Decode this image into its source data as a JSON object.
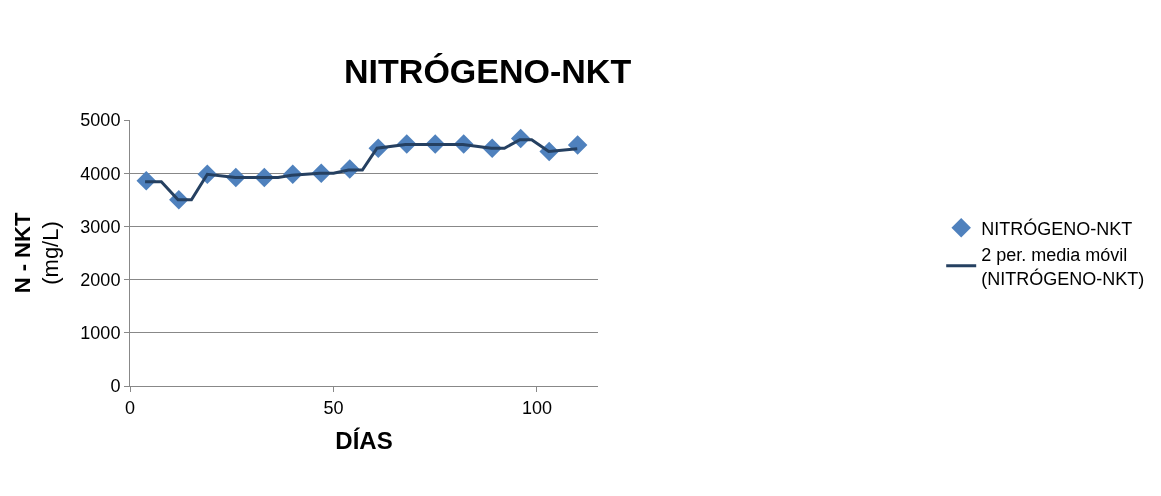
{
  "chart_data": {
    "type": "scatter",
    "title": "NITRÓGENO-NKT",
    "xlabel": "DÍAS",
    "ylabel": "N - NKT\n(mg/L)",
    "series": [
      {
        "name": "NITRÓGENO-NKT",
        "marker": "diamond",
        "color": "#4f81bd",
        "x": [
          4,
          12,
          19,
          26,
          33,
          40,
          47,
          54,
          61,
          68,
          75,
          82,
          89,
          96,
          103,
          110
        ],
        "values": [
          3860,
          3500,
          3980,
          3920,
          3920,
          3980,
          4000,
          4080,
          4470,
          4550,
          4550,
          4550,
          4470,
          4650,
          4410,
          4530
        ]
      },
      {
        "name": "2 per. media móvil\n(NITRÓGENO-NKT)",
        "type": "line",
        "line_style": "solid",
        "color": "#254061",
        "x": [
          3.7,
          7.7,
          11.8,
          15.1,
          19.0,
          25.9,
          36.4,
          39.7,
          46.7,
          50.0,
          53.7,
          57.1,
          60.7,
          67.7,
          81.8,
          88.8,
          92.0,
          95.8,
          98.7,
          102.9,
          109.9
        ],
        "values": [
          3840,
          3840,
          3500,
          3500,
          3980,
          3920,
          3920,
          3960,
          4000,
          4000,
          4060,
          4060,
          4470,
          4540,
          4540,
          4470,
          4470,
          4630,
          4630,
          4410,
          4460
        ]
      }
    ],
    "xlim": [
      0,
      115
    ],
    "xticks": [
      0,
      50,
      100
    ],
    "ylim": [
      0,
      5000
    ],
    "yticks": [
      0,
      1000,
      2000,
      3000,
      4000,
      5000
    ],
    "grid": "y",
    "legend": "right"
  }
}
